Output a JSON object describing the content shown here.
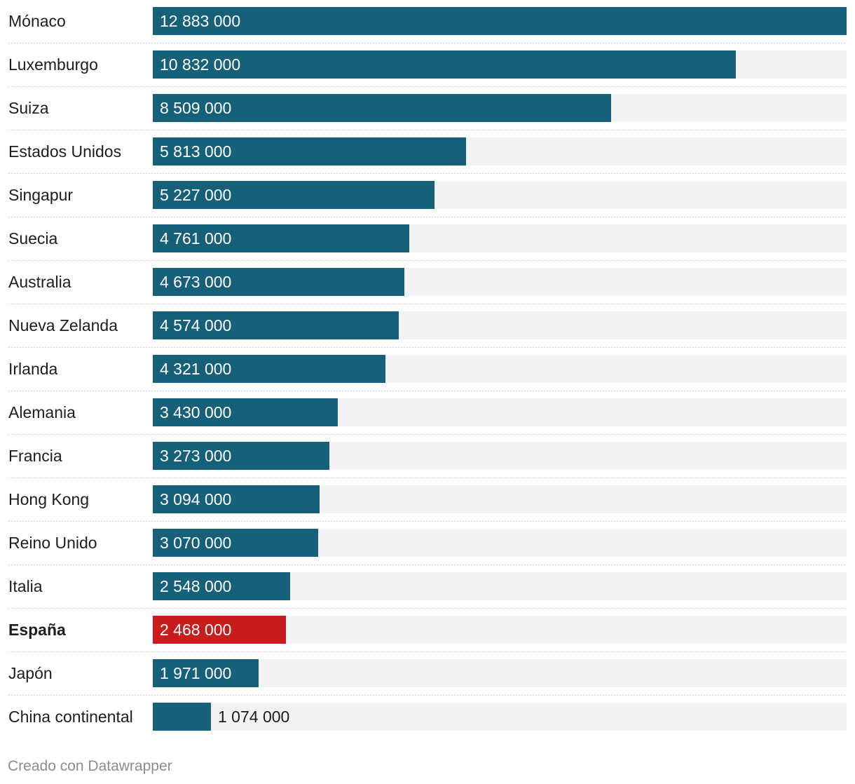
{
  "chart_data": {
    "type": "bar",
    "orientation": "horizontal",
    "title": "",
    "xlabel": "",
    "ylabel": "",
    "xlim": [
      0,
      12883000
    ],
    "grid": false,
    "categories": [
      "Mónaco",
      "Luxemburgo",
      "Suiza",
      "Estados Unidos",
      "Singapur",
      "Suecia",
      "Australia",
      "Nueva Zelanda",
      "Irlanda",
      "Alemania",
      "Francia",
      "Hong Kong",
      "Reino Unido",
      "Italia",
      "España",
      "Japón",
      "China continental"
    ],
    "values": [
      12883000,
      10832000,
      8509000,
      5813000,
      5227000,
      4761000,
      4673000,
      4574000,
      4321000,
      3430000,
      3273000,
      3094000,
      3070000,
      2548000,
      2468000,
      1971000,
      1074000
    ],
    "value_labels": [
      "12 883 000",
      "10 832 000",
      "8 509 000",
      "5 813 000",
      "5 227 000",
      "4 761 000",
      "4 673 000",
      "4 574 000",
      "4 321 000",
      "3 430 000",
      "3 273 000",
      "3 094 000",
      "3 070 000",
      "2 548 000",
      "2 468 000",
      "1 971 000",
      "1 074 000"
    ],
    "highlight": "España",
    "colors": {
      "bar": "#17607a",
      "highlight": "#c71e1d",
      "track": "#f2f2f2",
      "separator": "#c8c8c8"
    }
  },
  "footer": {
    "credit": "Creado con Datawrapper"
  }
}
